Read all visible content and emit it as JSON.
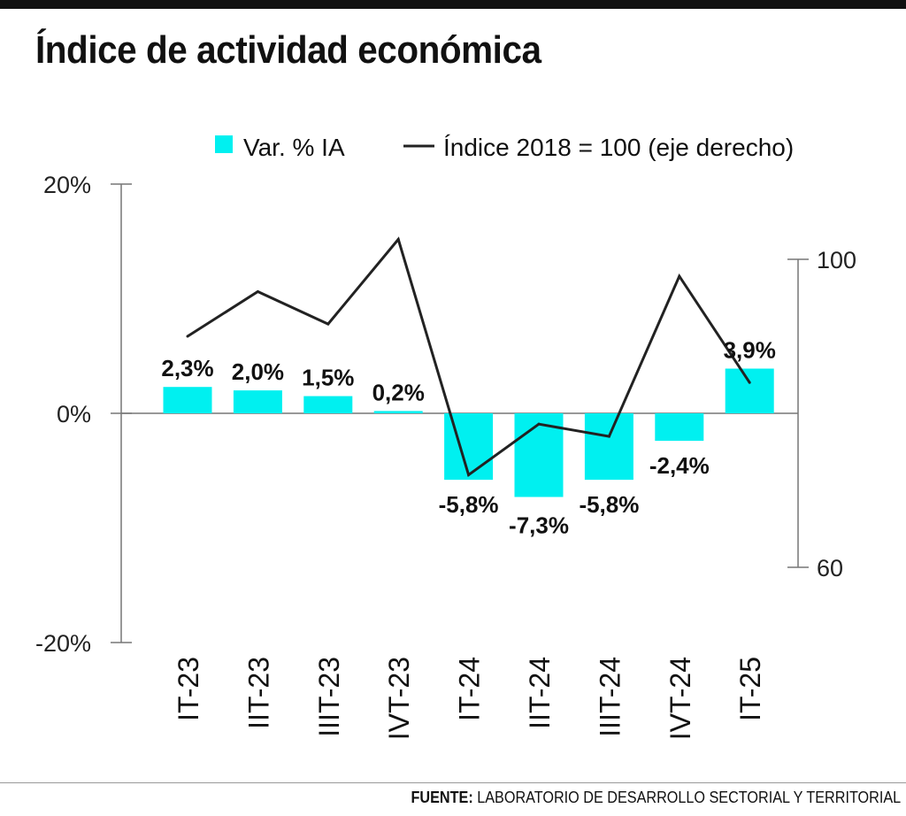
{
  "title": "Índice de actividad económica",
  "source": {
    "label": "FUENTE:",
    "text": "LABORATORIO DE DESARROLLO SECTORIAL Y TERRITORIAL"
  },
  "chart_data": {
    "type": "bar",
    "categories": [
      "IT-23",
      "IIT-23",
      "IIIT-23",
      "IVT-23",
      "IT-24",
      "IIT-24",
      "IIIT-24",
      "IVT-24",
      "IT-25"
    ],
    "series": [
      {
        "name": "Var. % IA",
        "type": "bar",
        "axis": "left",
        "color": "#00f0f0",
        "values": [
          2.3,
          2.0,
          1.5,
          0.2,
          -5.8,
          -7.3,
          -5.8,
          -2.4,
          3.9
        ],
        "labels": [
          "2,3%",
          "2,0%",
          "1,5%",
          "0,2%",
          "-5,8%",
          "-7,3%",
          "-5,8%",
          "-2,4%",
          "3,9%"
        ]
      },
      {
        "name": "Índice 2018 = 100 (eje derecho)",
        "type": "line",
        "axis": "right",
        "color": "#222222",
        "values": [
          90.0,
          95.8,
          91.6,
          102.6,
          72.0,
          78.6,
          77.0,
          97.8,
          84.0
        ]
      }
    ],
    "y_left": {
      "ylim": [
        -20,
        20
      ],
      "ticks": [
        20,
        0,
        -20
      ],
      "tick_labels": [
        "20%",
        "0%",
        "-20%"
      ]
    },
    "y_right": {
      "ylim": [
        60,
        100
      ],
      "ticks": [
        100,
        60
      ],
      "tick_labels": [
        "100",
        "60"
      ]
    },
    "legend": "top",
    "grid": false
  }
}
